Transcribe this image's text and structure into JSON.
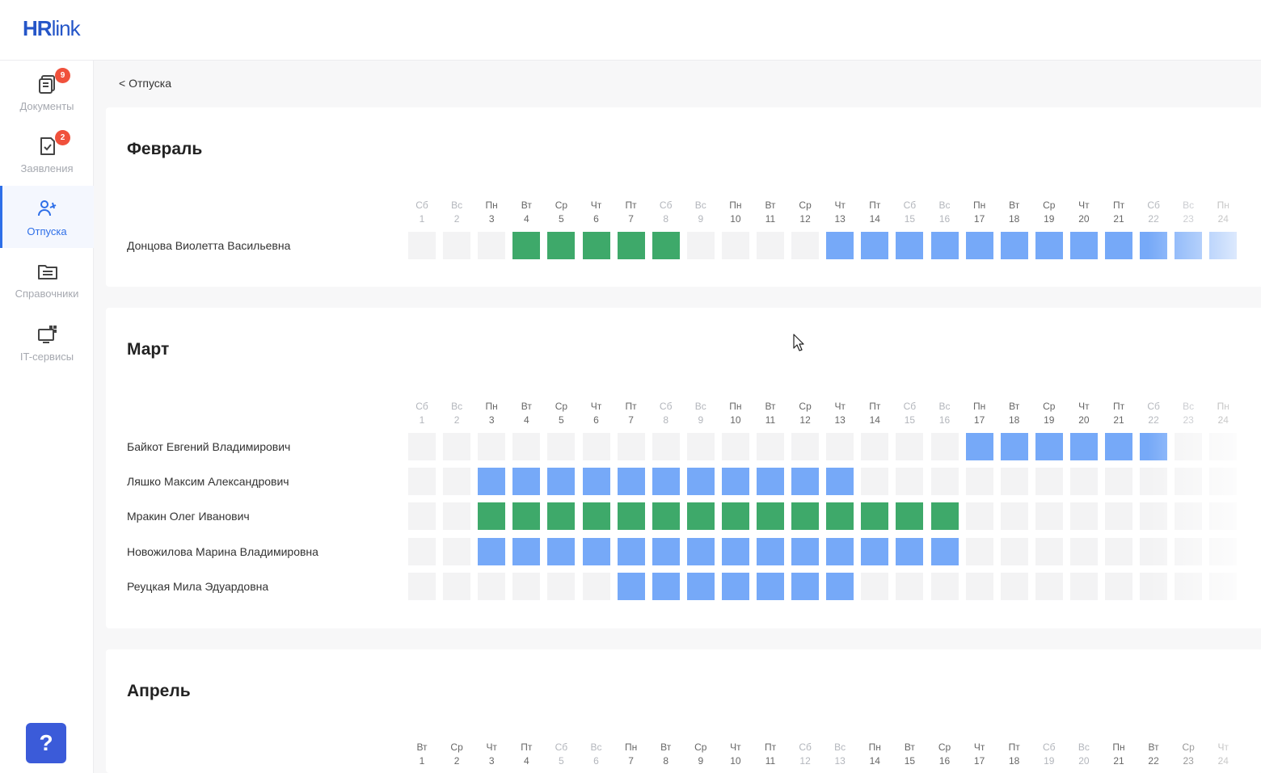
{
  "app": {
    "logo_part1": "HR",
    "logo_part2": "link"
  },
  "sidebar": {
    "items": [
      {
        "label": "Документы",
        "badge": "9",
        "icon": "documents-icon",
        "active": false
      },
      {
        "label": "Заявления",
        "badge": "2",
        "icon": "application-icon",
        "active": false
      },
      {
        "label": "Отпуска",
        "badge": "",
        "icon": "vacation-icon",
        "active": true
      },
      {
        "label": "Справочники",
        "badge": "",
        "icon": "directory-icon",
        "active": false
      },
      {
        "label": "IT-сервисы",
        "badge": "",
        "icon": "it-services-icon",
        "active": false
      }
    ],
    "help_label": "?"
  },
  "breadcrumb": "< Отпуска",
  "colors": {
    "vacation": "#76a9f8",
    "approved": "#3ea96a",
    "empty": "#f3f3f4",
    "accent": "#2e6fe8"
  },
  "months": [
    {
      "name": "Февраль",
      "days": [
        [
          "Сб",
          "1"
        ],
        [
          "Вс",
          "2"
        ],
        [
          "Пн",
          "3"
        ],
        [
          "Вт",
          "4"
        ],
        [
          "Ср",
          "5"
        ],
        [
          "Чт",
          "6"
        ],
        [
          "Пт",
          "7"
        ],
        [
          "Сб",
          "8"
        ],
        [
          "Вс",
          "9"
        ],
        [
          "Пн",
          "10"
        ],
        [
          "Вт",
          "11"
        ],
        [
          "Ср",
          "12"
        ],
        [
          "Чт",
          "13"
        ],
        [
          "Пт",
          "14"
        ],
        [
          "Сб",
          "15"
        ],
        [
          "Вс",
          "16"
        ],
        [
          "Пн",
          "17"
        ],
        [
          "Вт",
          "18"
        ],
        [
          "Ср",
          "19"
        ],
        [
          "Чт",
          "20"
        ],
        [
          "Пт",
          "21"
        ],
        [
          "Сб",
          "22"
        ],
        [
          "Вс",
          "23"
        ],
        [
          "Пн",
          "24"
        ]
      ],
      "rows": [
        {
          "name": "Донцова Виолетта Васильевна",
          "cells": "...ggggg....bbbbbbbbbbbb"
        }
      ]
    },
    {
      "name": "Март",
      "days": [
        [
          "Сб",
          "1"
        ],
        [
          "Вс",
          "2"
        ],
        [
          "Пн",
          "3"
        ],
        [
          "Вт",
          "4"
        ],
        [
          "Ср",
          "5"
        ],
        [
          "Чт",
          "6"
        ],
        [
          "Пт",
          "7"
        ],
        [
          "Сб",
          "8"
        ],
        [
          "Вс",
          "9"
        ],
        [
          "Пн",
          "10"
        ],
        [
          "Вт",
          "11"
        ],
        [
          "Ср",
          "12"
        ],
        [
          "Чт",
          "13"
        ],
        [
          "Пт",
          "14"
        ],
        [
          "Сб",
          "15"
        ],
        [
          "Вс",
          "16"
        ],
        [
          "Пн",
          "17"
        ],
        [
          "Вт",
          "18"
        ],
        [
          "Ср",
          "19"
        ],
        [
          "Чт",
          "20"
        ],
        [
          "Пт",
          "21"
        ],
        [
          "Сб",
          "22"
        ],
        [
          "Вс",
          "23"
        ],
        [
          "Пн",
          "24"
        ]
      ],
      "rows": [
        {
          "name": "Байкот Евгений Владимирович",
          "cells": "................bbbbbb.."
        },
        {
          "name": "Ляшко Максим Александрович",
          "cells": "..bbbbbbbbbbb..........."
        },
        {
          "name": "Мракин Олег Иванович",
          "cells": "..gggggggggggggg........"
        },
        {
          "name": "Новожилова Марина Владимировна",
          "cells": "..bbbbbbbbbbbbbb........"
        },
        {
          "name": "Реуцкая Мила Эдуардовна",
          "cells": "......bbbbbbb..........."
        }
      ]
    },
    {
      "name": "Апрель",
      "days": [
        [
          "Вт",
          "1"
        ],
        [
          "Ср",
          "2"
        ],
        [
          "Чт",
          "3"
        ],
        [
          "Пт",
          "4"
        ],
        [
          "Сб",
          "5"
        ],
        [
          "Вс",
          "6"
        ],
        [
          "Пн",
          "7"
        ],
        [
          "Вт",
          "8"
        ],
        [
          "Ср",
          "9"
        ],
        [
          "Чт",
          "10"
        ],
        [
          "Пт",
          "11"
        ],
        [
          "Сб",
          "12"
        ],
        [
          "Вс",
          "13"
        ],
        [
          "Пн",
          "14"
        ],
        [
          "Вт",
          "15"
        ],
        [
          "Ср",
          "16"
        ],
        [
          "Чт",
          "17"
        ],
        [
          "Пт",
          "18"
        ],
        [
          "Сб",
          "19"
        ],
        [
          "Вс",
          "20"
        ],
        [
          "Пн",
          "21"
        ],
        [
          "Вт",
          "22"
        ],
        [
          "Ср",
          "23"
        ],
        [
          "Чт",
          "24"
        ]
      ],
      "rows": []
    }
  ]
}
